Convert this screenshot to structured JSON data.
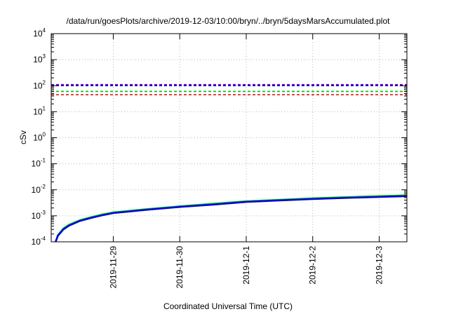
{
  "chart_data": {
    "type": "line",
    "title": "/data/run/goesPlots/archive/2019-12-03/10:00/bryn/../bryn/5daysMarsAccumulated.plot",
    "xlabel": "Coordinated Universal Time (UTC)",
    "ylabel": "cSv",
    "y_scale": "log",
    "ylim": [
      0.0001,
      10000
    ],
    "xlim": [
      "2019-11-28T01:36",
      "2019-12-03T10:00"
    ],
    "grid": true,
    "legend": "none",
    "y_ticks": [
      {
        "base": "10",
        "exp": "-4",
        "value": 0.0001
      },
      {
        "base": "10",
        "exp": "-3",
        "value": 0.001
      },
      {
        "base": "10",
        "exp": "-2",
        "value": 0.01
      },
      {
        "base": "10",
        "exp": "-1",
        "value": 0.1
      },
      {
        "base": "10",
        "exp": "0",
        "value": 1
      },
      {
        "base": "10",
        "exp": "1",
        "value": 10
      },
      {
        "base": "10",
        "exp": "2",
        "value": 100
      },
      {
        "base": "10",
        "exp": "3",
        "value": 1000
      },
      {
        "base": "10",
        "exp": "4",
        "value": 10000
      }
    ],
    "x_ticks": [
      {
        "label": "2019-11-29",
        "value": "2019-11-29T00:00"
      },
      {
        "label": "2019-11-30",
        "value": "2019-11-30T00:00"
      },
      {
        "label": "2019-12-1",
        "value": "2019-12-01T00:00"
      },
      {
        "label": "2019-12-2",
        "value": "2019-12-02T00:00"
      },
      {
        "label": "2019-12-3",
        "value": "2019-12-03T00:00"
      }
    ],
    "reference_lines": [
      {
        "value": 110,
        "color": "#7a00b4"
      },
      {
        "value": 100,
        "color": "#0000cc"
      },
      {
        "value": 60,
        "color": "#00c000"
      },
      {
        "value": 45,
        "color": "#e00000"
      }
    ],
    "series": [
      {
        "color": "#00cc00",
        "points": [
          [
            "2019-11-28T03:12",
            0.0001
          ],
          [
            "2019-11-28T04:00",
            0.00018
          ],
          [
            "2019-11-28T06:00",
            0.00033
          ],
          [
            "2019-11-28T08:00",
            0.00045
          ],
          [
            "2019-11-28T12:00",
            0.00068
          ],
          [
            "2019-11-28T16:00",
            0.00088
          ],
          [
            "2019-11-28T20:00",
            0.00112
          ],
          [
            "2019-11-29T00:00",
            0.00135
          ],
          [
            "2019-11-29T12:00",
            0.0018
          ],
          [
            "2019-11-30T00:00",
            0.0023
          ],
          [
            "2019-11-30T12:00",
            0.0029
          ],
          [
            "2019-12-01T00:00",
            0.0036
          ],
          [
            "2019-12-01T12:00",
            0.0041
          ],
          [
            "2019-12-02T00:00",
            0.0047
          ],
          [
            "2019-12-02T12:00",
            0.0052
          ],
          [
            "2019-12-03T00:00",
            0.0057
          ],
          [
            "2019-12-03T10:00",
            0.0061
          ]
        ]
      },
      {
        "color": "#0000dd",
        "points": [
          [
            "2019-11-28T03:12",
            0.0001
          ],
          [
            "2019-11-28T04:00",
            0.00017
          ],
          [
            "2019-11-28T06:00",
            0.0003
          ],
          [
            "2019-11-28T08:00",
            0.00042
          ],
          [
            "2019-11-28T12:00",
            0.00064
          ],
          [
            "2019-11-28T16:00",
            0.00083
          ],
          [
            "2019-11-28T20:00",
            0.00105
          ],
          [
            "2019-11-29T00:00",
            0.00127
          ],
          [
            "2019-11-29T12:00",
            0.0017
          ],
          [
            "2019-11-30T00:00",
            0.0022
          ],
          [
            "2019-11-30T12:00",
            0.0027
          ],
          [
            "2019-12-01T00:00",
            0.0034
          ],
          [
            "2019-12-01T12:00",
            0.0039
          ],
          [
            "2019-12-02T00:00",
            0.0044
          ],
          [
            "2019-12-02T12:00",
            0.0049
          ],
          [
            "2019-12-03T00:00",
            0.0053
          ],
          [
            "2019-12-03T10:00",
            0.0057
          ]
        ]
      }
    ]
  }
}
